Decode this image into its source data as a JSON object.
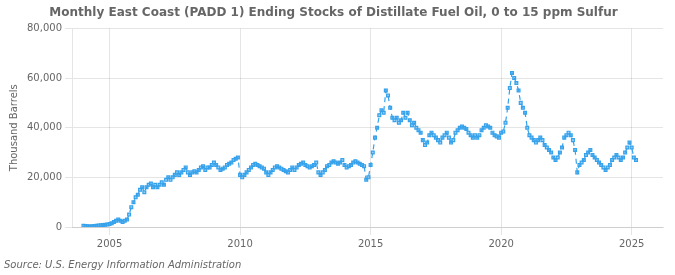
{
  "chart_data": {
    "type": "line",
    "title": "Monthly East Coast (PADD 1) Ending Stocks of Distillate Fuel Oil, 0 to 15 ppm Sulfur",
    "ylabel": "Thousand Barrels",
    "annotations": [
      "Source: U.S. Energy Information Administration"
    ],
    "marker": "square",
    "line_style": "dashed",
    "grid": true,
    "xlim": [
      2003.6,
      2026.2
    ],
    "xticks": [
      2005,
      2010,
      2015,
      2020,
      2025
    ],
    "ylim": [
      0,
      80000
    ],
    "yticks": [
      0,
      {
        "value": 20000,
        "label": "20,000"
      },
      {
        "value": 40000,
        "label": "40,000"
      },
      {
        "value": 60000,
        "label": "60,000"
      },
      {
        "value": 80000,
        "label": "80,000"
      }
    ],
    "x": [
      2004.0,
      2004.083,
      2004.167,
      2004.25,
      2004.333,
      2004.417,
      2004.5,
      2004.583,
      2004.667,
      2004.75,
      2004.833,
      2004.917,
      2005.0,
      2005.083,
      2005.167,
      2005.25,
      2005.333,
      2005.417,
      2005.5,
      2005.583,
      2005.667,
      2005.75,
      2005.833,
      2005.917,
      2006.0,
      2006.083,
      2006.167,
      2006.25,
      2006.333,
      2006.417,
      2006.5,
      2006.583,
      2006.667,
      2006.75,
      2006.833,
      2006.917,
      2007.0,
      2007.083,
      2007.167,
      2007.25,
      2007.333,
      2007.417,
      2007.5,
      2007.583,
      2007.667,
      2007.75,
      2007.833,
      2007.917,
      2008.0,
      2008.083,
      2008.167,
      2008.25,
      2008.333,
      2008.417,
      2008.5,
      2008.583,
      2008.667,
      2008.75,
      2008.833,
      2008.917,
      2009.0,
      2009.083,
      2009.167,
      2009.25,
      2009.333,
      2009.417,
      2009.5,
      2009.583,
      2009.667,
      2009.75,
      2009.833,
      2009.917,
      2010.0,
      2010.083,
      2010.167,
      2010.25,
      2010.333,
      2010.417,
      2010.5,
      2010.583,
      2010.667,
      2010.75,
      2010.833,
      2010.917,
      2011.0,
      2011.083,
      2011.167,
      2011.25,
      2011.333,
      2011.417,
      2011.5,
      2011.583,
      2011.667,
      2011.75,
      2011.833,
      2011.917,
      2012.0,
      2012.083,
      2012.167,
      2012.25,
      2012.333,
      2012.417,
      2012.5,
      2012.583,
      2012.667,
      2012.75,
      2012.833,
      2012.917,
      2013.0,
      2013.083,
      2013.167,
      2013.25,
      2013.333,
      2013.417,
      2013.5,
      2013.583,
      2013.667,
      2013.75,
      2013.833,
      2013.917,
      2014.0,
      2014.083,
      2014.167,
      2014.25,
      2014.333,
      2014.417,
      2014.5,
      2014.583,
      2014.667,
      2014.75,
      2014.833,
      2014.917,
      2015.0,
      2015.083,
      2015.167,
      2015.25,
      2015.333,
      2015.417,
      2015.5,
      2015.583,
      2015.667,
      2015.75,
      2015.833,
      2015.917,
      2016.0,
      2016.083,
      2016.167,
      2016.25,
      2016.333,
      2016.417,
      2016.5,
      2016.583,
      2016.667,
      2016.75,
      2016.833,
      2016.917,
      2017.0,
      2017.083,
      2017.167,
      2017.25,
      2017.333,
      2017.417,
      2017.5,
      2017.583,
      2017.667,
      2017.75,
      2017.833,
      2017.917,
      2018.0,
      2018.083,
      2018.167,
      2018.25,
      2018.333,
      2018.417,
      2018.5,
      2018.583,
      2018.667,
      2018.75,
      2018.833,
      2018.917,
      2019.0,
      2019.083,
      2019.167,
      2019.25,
      2019.333,
      2019.417,
      2019.5,
      2019.583,
      2019.667,
      2019.75,
      2019.833,
      2019.917,
      2020.0,
      2020.083,
      2020.167,
      2020.25,
      2020.333,
      2020.417,
      2020.5,
      2020.583,
      2020.667,
      2020.75,
      2020.833,
      2020.917,
      2021.0,
      2021.083,
      2021.167,
      2021.25,
      2021.333,
      2021.417,
      2021.5,
      2021.583,
      2021.667,
      2021.75,
      2021.833,
      2021.917,
      2022.0,
      2022.083,
      2022.167,
      2022.25,
      2022.333,
      2022.417,
      2022.5,
      2022.583,
      2022.667,
      2022.75,
      2022.833,
      2022.917,
      2023.0,
      2023.083,
      2023.167,
      2023.25,
      2023.333,
      2023.417,
      2023.5,
      2023.583,
      2023.667,
      2023.75,
      2023.833,
      2023.917,
      2024.0,
      2024.083,
      2024.167,
      2024.25,
      2024.333,
      2024.417,
      2024.5,
      2024.583,
      2024.667,
      2024.75,
      2024.833,
      2024.917,
      2025.0,
      2025.083,
      2025.167
    ],
    "values": [
      500,
      400,
      300,
      200,
      300,
      400,
      500,
      600,
      700,
      800,
      900,
      1000,
      1200,
      1500,
      2000,
      2500,
      3000,
      2500,
      2000,
      2500,
      3000,
      5000,
      8000,
      10000,
      12000,
      13000,
      15000,
      16000,
      14000,
      16000,
      17000,
      17500,
      16000,
      17000,
      16000,
      17000,
      18000,
      17000,
      19000,
      20000,
      19000,
      20000,
      21000,
      22000,
      21000,
      22000,
      23000,
      24000,
      22000,
      21000,
      22000,
      22500,
      22000,
      23000,
      24000,
      24500,
      23000,
      24000,
      24000,
      25000,
      26000,
      25000,
      24000,
      23000,
      23500,
      24000,
      25000,
      25500,
      26000,
      27000,
      27500,
      28000,
      21000,
      20000,
      21000,
      22000,
      23000,
      24000,
      25000,
      25500,
      25000,
      24500,
      24000,
      23500,
      22000,
      21000,
      22000,
      23000,
      24000,
      24500,
      24000,
      23500,
      23000,
      22500,
      22000,
      23000,
      24000,
      23000,
      24000,
      25000,
      25500,
      26000,
      25000,
      24500,
      24000,
      24500,
      25000,
      26000,
      22000,
      21000,
      22000,
      23000,
      24500,
      25000,
      26000,
      26500,
      26000,
      25500,
      26000,
      27000,
      25000,
      24000,
      24500,
      25000,
      26000,
      26500,
      26000,
      25500,
      25000,
      24500,
      19000,
      20000,
      25000,
      30000,
      36000,
      40000,
      45000,
      47000,
      46000,
      55000,
      53000,
      48000,
      44000,
      43000,
      44000,
      42000,
      43000,
      46000,
      44000,
      46000,
      43000,
      41000,
      42000,
      40000,
      39000,
      38000,
      35000,
      33000,
      34000,
      37000,
      38000,
      37000,
      36000,
      35000,
      34000,
      36000,
      37000,
      38000,
      36000,
      34000,
      35000,
      38000,
      39000,
      40000,
      40500,
      40000,
      39500,
      38000,
      37000,
      36000,
      37000,
      36000,
      37000,
      39000,
      40000,
      41000,
      40500,
      40000,
      38000,
      37000,
      36500,
      36000,
      38000,
      38500,
      42000,
      48000,
      56000,
      62000,
      60000,
      58000,
      55000,
      50000,
      48000,
      46000,
      40000,
      37000,
      36000,
      35000,
      34000,
      35000,
      36000,
      35000,
      33000,
      32000,
      31000,
      30000,
      28000,
      27000,
      28000,
      30000,
      32000,
      36000,
      37000,
      38000,
      37000,
      35000,
      31000,
      22000,
      25000,
      26000,
      27000,
      29000,
      30000,
      31000,
      29000,
      28000,
      27000,
      26000,
      25000,
      24000,
      23000,
      24000,
      25000,
      27000,
      28000,
      29000,
      28000,
      27000,
      28000,
      30000,
      32000,
      34000,
      32000,
      28000,
      27000
    ]
  }
}
